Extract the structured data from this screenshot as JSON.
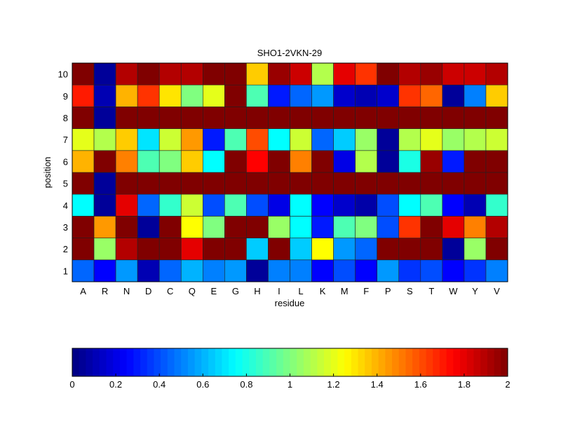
{
  "chart_data": {
    "type": "heatmap",
    "title": "SHO1-2VKN-29",
    "xlabel": "residue",
    "ylabel": "position",
    "colormap": "jet",
    "clim": [
      0,
      2
    ],
    "x_categories": [
      "A",
      "R",
      "N",
      "D",
      "C",
      "Q",
      "E",
      "G",
      "H",
      "I",
      "L",
      "K",
      "M",
      "F",
      "P",
      "S",
      "T",
      "W",
      "Y",
      "V"
    ],
    "y_categories": [
      "1",
      "2",
      "3",
      "4",
      "5",
      "6",
      "7",
      "8",
      "9",
      "10"
    ],
    "values": [
      [
        0.45,
        0.25,
        0.55,
        0.1,
        0.45,
        0.6,
        0.5,
        0.55,
        0.05,
        0.5,
        0.5,
        0.25,
        0.4,
        0.25,
        0.55,
        0.35,
        0.4,
        0.25,
        0.35,
        0.5
      ],
      [
        2.0,
        1.05,
        1.9,
        2.0,
        2.0,
        1.8,
        2.0,
        2.0,
        0.65,
        2.0,
        0.65,
        1.25,
        0.55,
        0.45,
        2.0,
        2.0,
        2.0,
        0.05,
        1.05,
        2.0
      ],
      [
        2.0,
        1.45,
        2.0,
        0.05,
        2.0,
        1.25,
        1.0,
        2.0,
        2.0,
        1.05,
        0.75,
        0.3,
        0.9,
        1.0,
        0.4,
        1.65,
        2.0,
        1.8,
        1.5,
        1.9
      ],
      [
        0.75,
        0.05,
        1.8,
        0.45,
        0.85,
        1.15,
        0.4,
        0.9,
        0.4,
        0.2,
        0.75,
        0.25,
        0.15,
        0.08,
        0.4,
        0.75,
        0.9,
        0.25,
        0.1,
        0.85
      ],
      [
        2.0,
        0.05,
        2.0,
        2.0,
        2.0,
        2.0,
        2.0,
        2.0,
        2.0,
        2.0,
        2.0,
        2.0,
        2.0,
        2.0,
        2.0,
        2.0,
        2.0,
        2.0,
        2.0,
        2.0
      ],
      [
        1.4,
        2.0,
        1.5,
        0.9,
        1.0,
        1.35,
        0.75,
        2.0,
        1.75,
        2.0,
        1.5,
        2.0,
        0.2,
        1.1,
        0.05,
        0.8,
        1.95,
        0.3,
        2.0,
        2.0
      ],
      [
        1.2,
        1.1,
        1.35,
        0.7,
        1.15,
        1.45,
        0.3,
        0.9,
        1.6,
        0.75,
        1.15,
        0.45,
        0.65,
        1.05,
        0.05,
        1.1,
        1.2,
        1.05,
        1.1,
        1.15
      ],
      [
        2.0,
        0.05,
        2.0,
        2.0,
        2.0,
        2.0,
        2.0,
        2.0,
        2.0,
        2.0,
        2.0,
        2.0,
        2.0,
        2.0,
        2.0,
        2.0,
        2.0,
        2.0,
        2.0,
        2.0
      ],
      [
        1.7,
        0.1,
        1.4,
        1.65,
        1.3,
        1.0,
        1.2,
        2.0,
        0.9,
        0.3,
        0.45,
        0.55,
        0.15,
        0.1,
        0.15,
        1.65,
        1.55,
        0.05,
        0.5,
        1.35
      ],
      [
        2.0,
        0.05,
        1.9,
        2.0,
        1.9,
        1.9,
        2.0,
        2.0,
        1.35,
        1.95,
        1.85,
        1.1,
        1.8,
        1.65,
        2.0,
        1.9,
        1.95,
        1.85,
        1.85,
        1.9
      ]
    ],
    "colorbar": {
      "orientation": "horizontal",
      "ticks": [
        "0",
        "0.2",
        "0.4",
        "0.6",
        "0.8",
        "1",
        "1.2",
        "1.4",
        "1.6",
        "1.8",
        "2"
      ]
    },
    "grid": false
  }
}
